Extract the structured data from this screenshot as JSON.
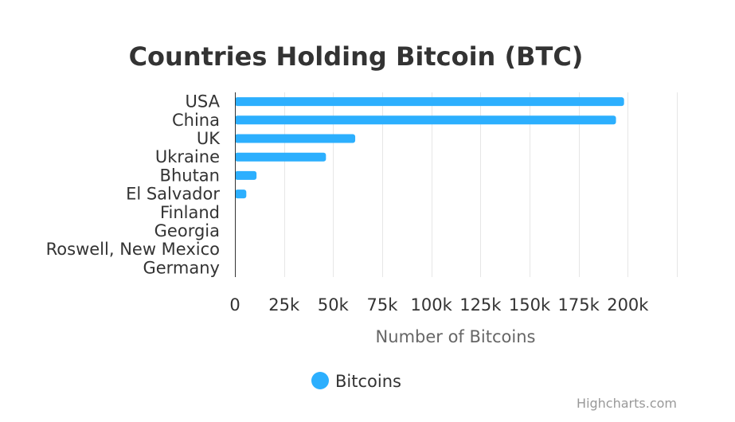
{
  "colors": {
    "series": "#2caffe",
    "grid": "#e6e6e6",
    "axis_line": "#333333",
    "title": "#333333",
    "axis_title": "#666666",
    "credits": "#999999"
  },
  "credits": "Highcharts.com",
  "chart_data": {
    "type": "bar",
    "orientation": "horizontal",
    "title": "Countries Holding Bitcoin (BTC)",
    "categories": [
      "USA",
      "China",
      "UK",
      "Ukraine",
      "Bhutan",
      "El Salvador",
      "Finland",
      "Georgia",
      "Roswell, New Mexico",
      "Germany"
    ],
    "series": [
      {
        "name": "Bitcoins",
        "values": [
          198109,
          194000,
          61245,
          46351,
          11000,
          5800,
          90,
          66,
          2,
          0
        ]
      }
    ],
    "xlabel": "Number of Bitcoins",
    "ylabel": "",
    "xlim": [
      0,
      225000
    ],
    "ticks": [
      0,
      25000,
      50000,
      75000,
      100000,
      125000,
      150000,
      175000,
      200000
    ],
    "tick_labels": [
      "0",
      "25k",
      "50k",
      "75k",
      "100k",
      "125k",
      "150k",
      "175k",
      "200k"
    ],
    "grid": true,
    "legend": "bottom-center"
  }
}
